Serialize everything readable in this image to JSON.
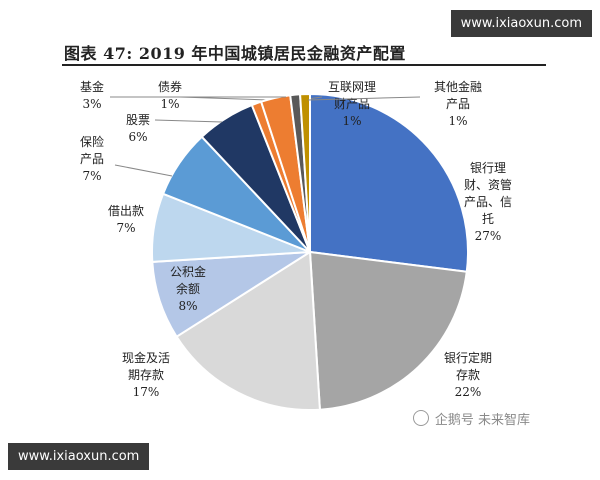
{
  "watermark": {
    "top": "www.ixiaoxun.com",
    "bottom": "www.ixiaoxun.com"
  },
  "source_brand": "企鹅号 未来智库",
  "chart_data": {
    "type": "pie",
    "title": "图表 47: 2019 年中国城镇居民金融资产配置",
    "unit": "%",
    "slices": [
      {
        "label": "银行理财、资管产品、信托",
        "value": 27,
        "color": "#4472c4"
      },
      {
        "label": "银行定期存款",
        "value": 22,
        "color": "#a5a5a5"
      },
      {
        "label": "现金及活期存款",
        "value": 17,
        "color": "#d9d9d9"
      },
      {
        "label": "公积金余额",
        "value": 8,
        "color": "#b4c7e7"
      },
      {
        "label": "借出款",
        "value": 7,
        "color": "#bdd7ee"
      },
      {
        "label": "保险产品",
        "value": 7,
        "color": "#5b9bd5"
      },
      {
        "label": "股票",
        "value": 6,
        "color": "#203864"
      },
      {
        "label": "债券",
        "value": 1,
        "color": "#ed7d31"
      },
      {
        "label": "基金",
        "value": 3,
        "color": "#ed7d31"
      },
      {
        "label": "互联网理财产品",
        "value": 1,
        "color": "#595959"
      },
      {
        "label": "其他金融产品",
        "value": 1,
        "color": "#bf9000"
      }
    ]
  }
}
